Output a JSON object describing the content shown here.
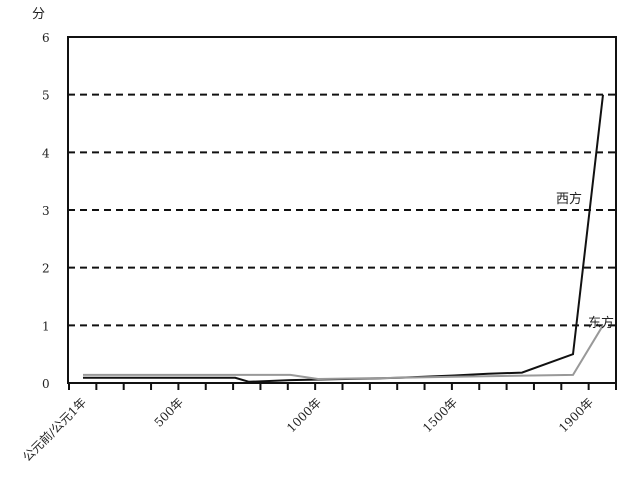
{
  "chart_data": {
    "type": "line",
    "title": "",
    "ylabel": "分",
    "xlabel": "",
    "ylim": [
      0,
      6
    ],
    "yticks": [
      0,
      1,
      2,
      3,
      4,
      5,
      6
    ],
    "grid": "horizontal dashed",
    "x_tick_labels": [
      {
        "year": 0,
        "label": "公元前/公元1年"
      },
      {
        "year": 500,
        "label": "500年"
      },
      {
        "year": 1000,
        "label": "1000年"
      },
      {
        "year": 1500,
        "label": "1500年"
      },
      {
        "year": 1900,
        "label": "1900年"
      }
    ],
    "series": [
      {
        "name": "西方",
        "color": "#111111",
        "points": [
          [
            0,
            0.09
          ],
          [
            700,
            0.09
          ],
          [
            750,
            0.02
          ],
          [
            900,
            0.05
          ],
          [
            1100,
            0.07
          ],
          [
            1300,
            0.09
          ],
          [
            1500,
            0.13
          ],
          [
            1600,
            0.16
          ],
          [
            1700,
            0.18
          ],
          [
            1850,
            0.5
          ],
          [
            1950,
            5.0
          ]
        ]
      },
      {
        "name": "东方",
        "color": "#999999",
        "points": [
          [
            0,
            0.14
          ],
          [
            900,
            0.14
          ],
          [
            1000,
            0.07
          ],
          [
            1300,
            0.09
          ],
          [
            1500,
            0.11
          ],
          [
            1850,
            0.14
          ],
          [
            1950,
            1.0
          ]
        ]
      }
    ]
  }
}
